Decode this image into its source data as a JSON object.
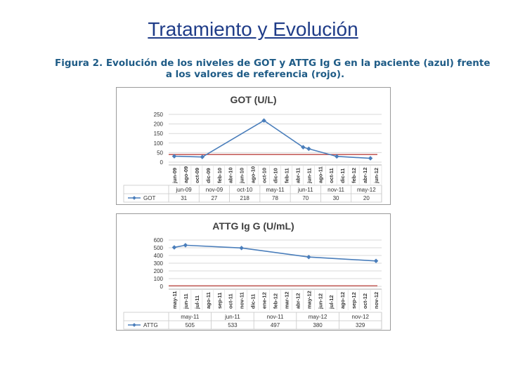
{
  "page": {
    "title": "Tratamiento y Evolución",
    "caption_line1": "Figura 2. Evolución de los niveles de GOT y ATTG Ig G en la paciente (azul) frente",
    "caption_line2": "a los valores de referencia (rojo)."
  },
  "colors": {
    "series": "#4a7ebb",
    "reference": "#c0504d",
    "grid": "#d9d9d9",
    "title": "#404040"
  },
  "chart_data": [
    {
      "type": "line",
      "title": "GOT (U/L)",
      "x": [
        "jun-09",
        "ago-09",
        "oct-09",
        "dic-09",
        "feb-10",
        "abr-10",
        "jun-10",
        "ago-10",
        "oct-10",
        "dic-10",
        "feb-11",
        "abr-11",
        "jun-11",
        "ago-11",
        "oct-11",
        "dic-11",
        "feb-12",
        "abr-12",
        "jun-12"
      ],
      "ylim": [
        0,
        250
      ],
      "yticks": [
        "0",
        "50",
        "100",
        "150",
        "200",
        "250"
      ],
      "series": [
        {
          "name": "GOT",
          "points": [
            [
              "jun-09",
              31
            ],
            [
              "nov-09",
              27
            ],
            [
              "oct-10",
              218
            ],
            [
              "may-11",
              78
            ],
            [
              "jun-11",
              70
            ],
            [
              "nov-11",
              30
            ],
            [
              "may-12",
              20
            ]
          ]
        }
      ],
      "reference_value": 40,
      "table": {
        "headers": [
          "jun-09",
          "nov-09",
          "oct-10",
          "may-11",
          "jun-11",
          "nov-11",
          "may-12"
        ],
        "row_label": "GOT",
        "values": [
          "31",
          "27",
          "218",
          "78",
          "70",
          "30",
          "20"
        ]
      },
      "grid": true,
      "legend": "table-left"
    },
    {
      "type": "line",
      "title": "ATTG Ig G (U/mL)",
      "x": [
        "may-11",
        "jun-11",
        "jul-11",
        "ago-11",
        "sep-11",
        "oct-11",
        "nov-11",
        "dic-11",
        "ene-12",
        "feb-12",
        "mar-12",
        "abr-12",
        "may-12",
        "jun-12",
        "jul-12",
        "ago-12",
        "sep-12",
        "oct-12",
        "nov-12"
      ],
      "ylim": [
        0,
        600
      ],
      "yticks": [
        "0",
        "100",
        "200",
        "300",
        "400",
        "500",
        "600"
      ],
      "series": [
        {
          "name": "ATTG",
          "points": [
            [
              "may-11",
              505
            ],
            [
              "jun-11",
              533
            ],
            [
              "nov-11",
              497
            ],
            [
              "may-12",
              380
            ],
            [
              "nov-12",
              329
            ]
          ]
        }
      ],
      "reference_value": 7,
      "table": {
        "headers": [
          "may-11",
          "jun-11",
          "nov-11",
          "may-12",
          "nov-12"
        ],
        "row_label": "ATTG",
        "values": [
          "505",
          "533",
          "497",
          "380",
          "329"
        ]
      },
      "grid": true,
      "legend": "table-left"
    }
  ]
}
